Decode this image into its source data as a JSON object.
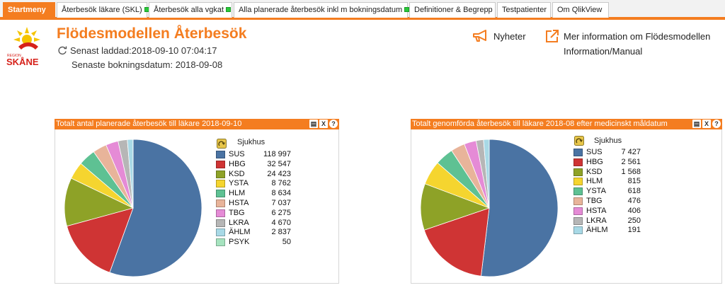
{
  "tabs": [
    {
      "label": "Startmeny",
      "active": true,
      "indicator": false
    },
    {
      "label": "Återbesök läkare (SKL)",
      "active": false,
      "indicator": true
    },
    {
      "label": "Återbesök alla vgkat",
      "active": false,
      "indicator": true
    },
    {
      "label": "Alla planerade återbesök inkl m bokningsdatum",
      "active": false,
      "indicator": true
    },
    {
      "label": "Definitioner & Begrepp",
      "active": false,
      "indicator": false
    },
    {
      "label": "Testpatienter",
      "active": false,
      "indicator": false
    },
    {
      "label": "Om QlikView",
      "active": false,
      "indicator": false
    }
  ],
  "header": {
    "logo_top": "REGION",
    "logo_name": "SKÅNE",
    "title": "Flödesmodellen Återbesök",
    "loaded": "Senast laddad:2018-09-10 07:04:17",
    "booking_date": "Senaste bokningsdatum: 2018-09-08",
    "news_label": "Nyheter",
    "more_info_label": "Mer information om Flödesmodellen",
    "manual_label": "Information/Manual"
  },
  "colors": {
    "accent": "#f47d20",
    "indicator": "#2bc93a",
    "slices": [
      "#4a73a3",
      "#cf3434",
      "#8ea227",
      "#f5d52f",
      "#5ec193",
      "#e8b49a",
      "#e58bd6",
      "#b6b6b6",
      "#a8d9e6",
      "#a6e3bf"
    ]
  },
  "chart_data": [
    {
      "type": "pie",
      "title": "Totalt antal planerade återbesök till läkare 2018-09-10",
      "legend_title": "Sjukhus",
      "categories": [
        "SUS",
        "HBG",
        "KSD",
        "YSTA",
        "HLM",
        "HSTA",
        "TBG",
        "LKRA",
        "ÄHLM",
        "PSYK"
      ],
      "values": [
        118997,
        32547,
        24423,
        8762,
        8634,
        7037,
        6275,
        4670,
        2837,
        50
      ],
      "value_labels": [
        "118 997",
        "32 547",
        "24 423",
        "8 762",
        "8 634",
        "7 037",
        "6 275",
        "4 670",
        "2 837",
        "50"
      ],
      "legend": "right"
    },
    {
      "type": "pie",
      "title": "Totalt genomförda återbesök till läkare 2018-08 efter medicinskt måldatum",
      "legend_title": "Sjukhus",
      "categories": [
        "SUS",
        "HBG",
        "KSD",
        "HLM",
        "YSTA",
        "TBG",
        "HSTA",
        "LKRA",
        "ÄHLM"
      ],
      "values": [
        7427,
        2561,
        1568,
        815,
        618,
        476,
        406,
        250,
        191
      ],
      "value_labels": [
        "7 427",
        "2 561",
        "1 568",
        "815",
        "618",
        "476",
        "406",
        "250",
        "191"
      ],
      "legend": "right"
    }
  ]
}
